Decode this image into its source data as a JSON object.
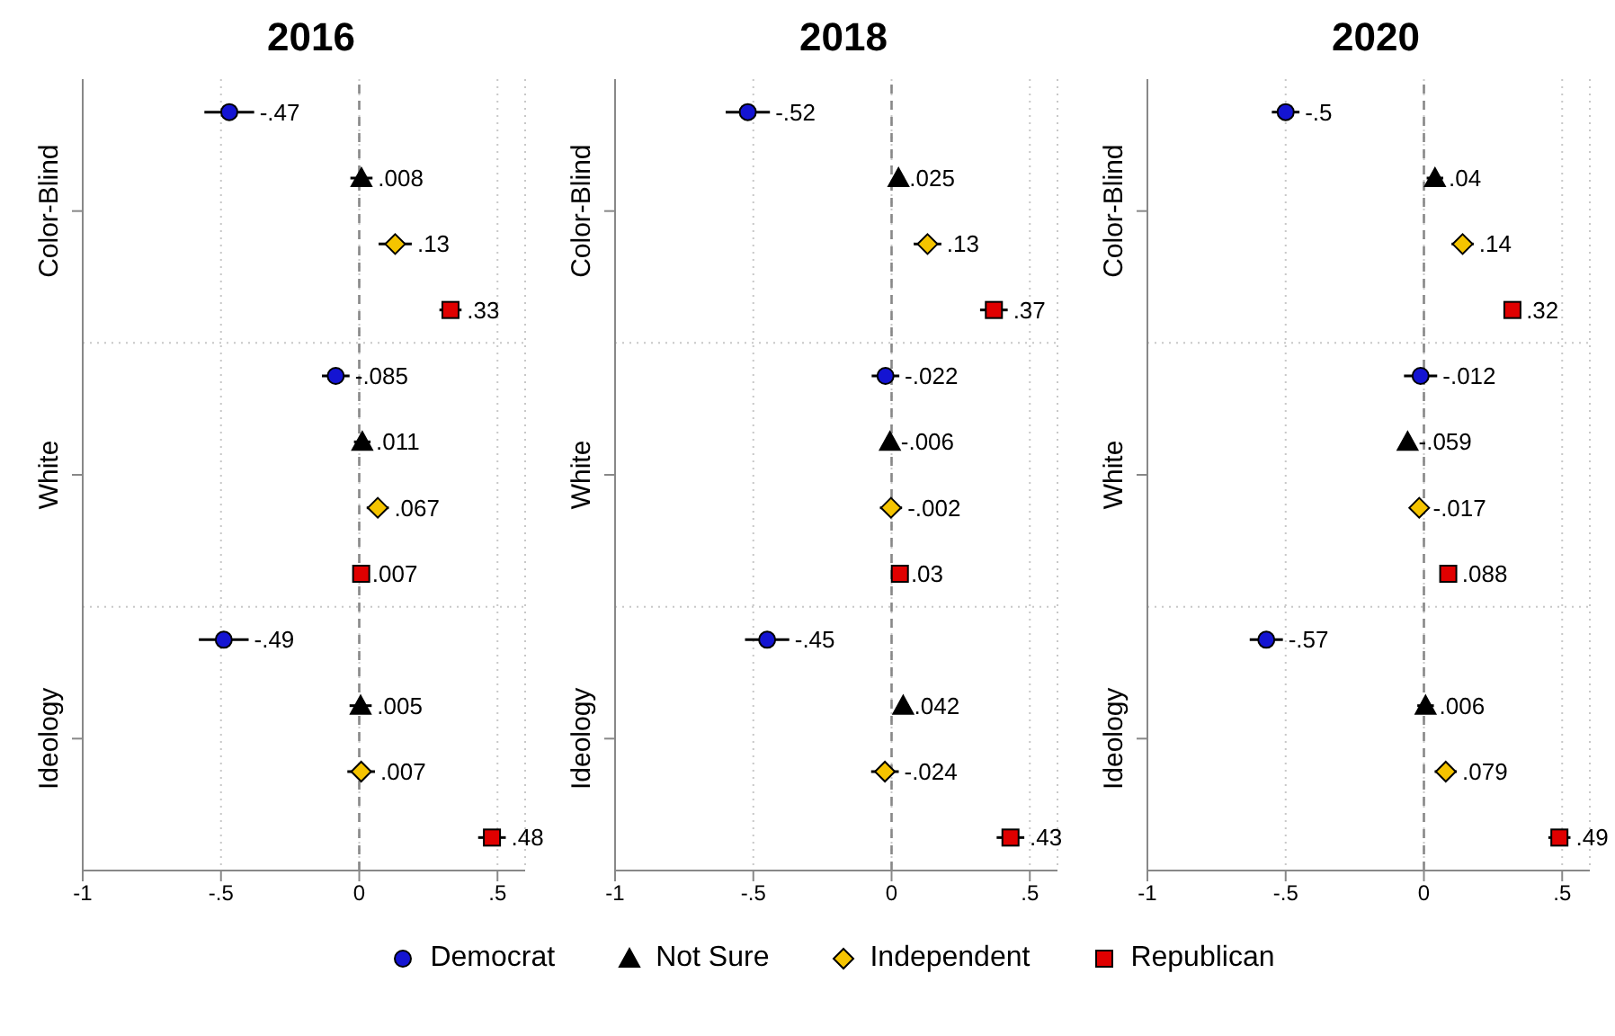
{
  "chart_data": [
    {
      "type": "scatter",
      "orientation": "horizontal",
      "title": "2016",
      "categories": [
        "Color-Blind",
        "White",
        "Ideology"
      ],
      "xlim": [
        -1,
        0.6
      ],
      "xticks": [
        {
          "value": -1,
          "label": "-1"
        },
        {
          "value": -0.5,
          "label": "-.5"
        },
        {
          "value": 0,
          "label": "0"
        },
        {
          "value": 0.5,
          "label": ".5"
        }
      ],
      "grid": true,
      "legend": "bottom",
      "ref_lines": [
        {
          "axis": "x",
          "value": 0,
          "color": "#888888",
          "line_style": "dashed"
        }
      ],
      "series": [
        {
          "name": "Democrat",
          "color": "#1414d2",
          "marker": "circle",
          "values": [
            -0.47,
            -0.085,
            -0.49
          ],
          "errors": [
            0.09,
            0.05,
            0.09
          ],
          "value_labels": [
            "-.47",
            "-.085",
            "-.49"
          ]
        },
        {
          "name": "Not Sure",
          "color": "#000000",
          "marker": "triangle",
          "values": [
            0.008,
            0.011,
            0.005
          ],
          "errors": [
            0.04,
            0.03,
            0.04
          ],
          "value_labels": [
            ".008",
            ".011",
            ".005"
          ]
        },
        {
          "name": "Independent",
          "color": "#f5c400",
          "marker": "diamond",
          "values": [
            0.13,
            0.067,
            0.007
          ],
          "errors": [
            0.06,
            0.04,
            0.05
          ],
          "value_labels": [
            ".13",
            ".067",
            ".007"
          ]
        },
        {
          "name": "Republican",
          "color": "#e00000",
          "marker": "square",
          "values": [
            0.33,
            0.007,
            0.48
          ],
          "errors": [
            0.04,
            0.02,
            0.05
          ],
          "value_labels": [
            ".33",
            ".007",
            ".48"
          ]
        }
      ]
    },
    {
      "type": "scatter",
      "orientation": "horizontal",
      "title": "2018",
      "categories": [
        "Color-Blind",
        "White",
        "Ideology"
      ],
      "xlim": [
        -1,
        0.6
      ],
      "xticks": [
        {
          "value": -1,
          "label": "-1"
        },
        {
          "value": -0.5,
          "label": "-.5"
        },
        {
          "value": 0,
          "label": "0"
        },
        {
          "value": 0.5,
          "label": ".5"
        }
      ],
      "grid": true,
      "ref_lines": [
        {
          "axis": "x",
          "value": 0,
          "color": "#888888",
          "line_style": "dashed"
        }
      ],
      "series": [
        {
          "color": "#1414d2",
          "marker": "circle",
          "values": [
            -0.52,
            -0.022,
            -0.45
          ],
          "errors": [
            0.08,
            0.05,
            0.08
          ],
          "value_labels": [
            "-.52",
            "-.022",
            "-.45"
          ]
        },
        {
          "color": "#000000",
          "marker": "triangle",
          "values": [
            0.025,
            -0.006,
            0.042
          ],
          "errors": [
            0.02,
            0.02,
            0.02
          ],
          "value_labels": [
            ".025",
            "-.006",
            ".042"
          ]
        },
        {
          "color": "#f5c400",
          "marker": "diamond",
          "values": [
            0.13,
            -0.002,
            -0.024
          ],
          "errors": [
            0.05,
            0.04,
            0.05
          ],
          "value_labels": [
            ".13",
            "-.002",
            "-.024"
          ]
        },
        {
          "color": "#e00000",
          "marker": "square",
          "values": [
            0.37,
            0.03,
            0.43
          ],
          "errors": [
            0.05,
            0.02,
            0.05
          ],
          "value_labels": [
            ".37",
            ".03",
            ".43"
          ]
        }
      ]
    },
    {
      "type": "scatter",
      "orientation": "horizontal",
      "title": "2020",
      "categories": [
        "Color-Blind",
        "White",
        "Ideology"
      ],
      "xlim": [
        -1,
        0.6
      ],
      "xticks": [
        {
          "value": -1,
          "label": "-1"
        },
        {
          "value": -0.5,
          "label": "-.5"
        },
        {
          "value": 0,
          "label": "0"
        },
        {
          "value": 0.5,
          "label": ".5"
        }
      ],
      "grid": true,
      "ref_lines": [
        {
          "axis": "x",
          "value": 0,
          "color": "#888888",
          "line_style": "dashed"
        }
      ],
      "series": [
        {
          "color": "#1414d2",
          "marker": "circle",
          "values": [
            -0.5,
            -0.012,
            -0.57
          ],
          "errors": [
            0.05,
            0.06,
            0.06
          ],
          "value_labels": [
            "-.5",
            "-.012",
            "-.57"
          ]
        },
        {
          "color": "#000000",
          "marker": "triangle",
          "values": [
            0.04,
            -0.059,
            0.006
          ],
          "errors": [
            0.03,
            0.02,
            0.03
          ],
          "value_labels": [
            ".04",
            "-.059",
            ".006"
          ]
        },
        {
          "color": "#f5c400",
          "marker": "diamond",
          "values": [
            0.14,
            -0.017,
            0.079
          ],
          "errors": [
            0.04,
            0.03,
            0.04
          ],
          "value_labels": [
            ".14",
            "-.017",
            ".079"
          ]
        },
        {
          "color": "#e00000",
          "marker": "square",
          "values": [
            0.32,
            0.088,
            0.49
          ],
          "errors": [
            0.03,
            0.03,
            0.04
          ],
          "value_labels": [
            ".32",
            ".088",
            ".49"
          ]
        }
      ]
    }
  ]
}
